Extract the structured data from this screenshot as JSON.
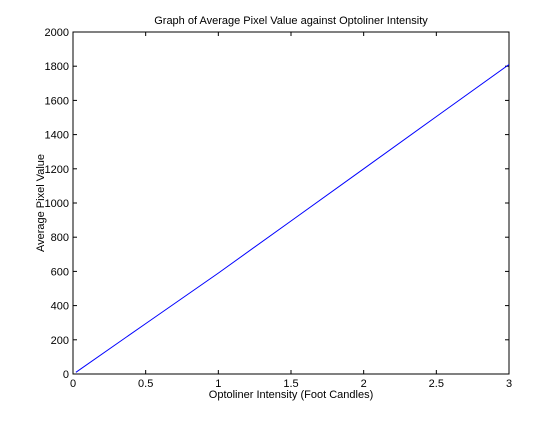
{
  "chart_data": {
    "type": "line",
    "title": "Graph of Average Pixel Value against Optoliner Intensity",
    "xlabel": "Optoliner Intensity (Foot Candles)",
    "ylabel": "Average Pixel Value",
    "xlim": [
      0,
      3
    ],
    "ylim": [
      0,
      2000
    ],
    "xticks": [
      0,
      0.5,
      1,
      1.5,
      2,
      2.5,
      3
    ],
    "yticks": [
      0,
      200,
      400,
      600,
      800,
      1000,
      1200,
      1400,
      1600,
      1800,
      2000
    ],
    "grid": false,
    "legend": "none",
    "series": [
      {
        "color": "#0000ff",
        "x": [
          0.02,
          0.5,
          1.0,
          1.5,
          2.0,
          2.5,
          3.0
        ],
        "y": [
          10,
          295,
          590,
          895,
          1200,
          1505,
          1810
        ]
      }
    ]
  }
}
